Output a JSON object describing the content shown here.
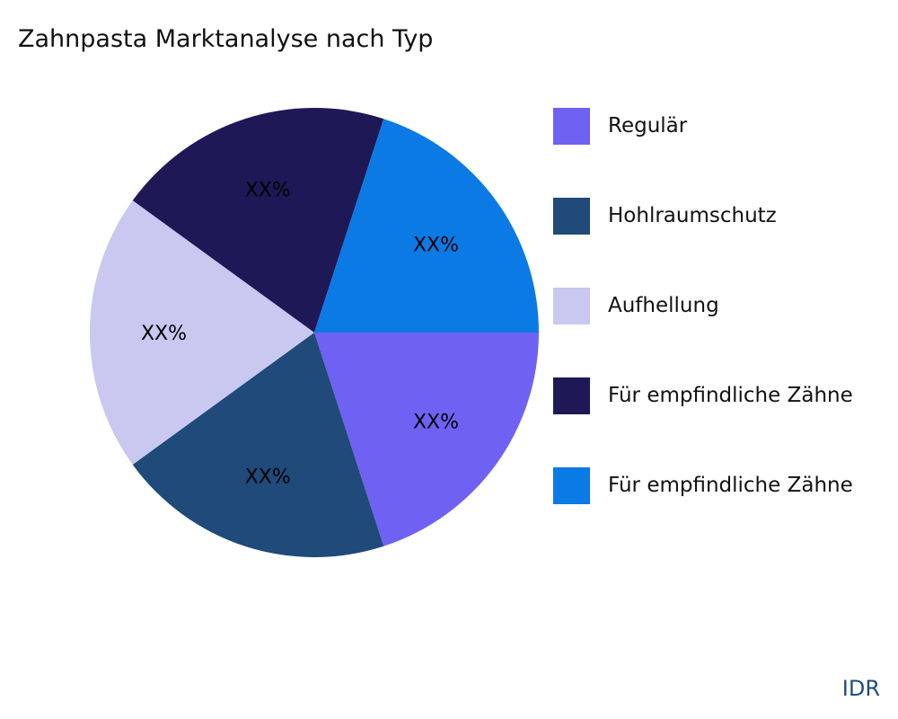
{
  "title": "Zahnpasta Marktanalyse nach Typ",
  "source": "IDR",
  "chart_data": {
    "type": "pie",
    "title": "Zahnpasta Marktanalyse nach Typ",
    "categories": [
      "Regulär",
      "Hohlraumschutz",
      "Aufhellung",
      "Für empfindliche Zähne",
      "Für empfindliche Zähne"
    ],
    "values": [
      20,
      20,
      20,
      20,
      20
    ],
    "labels": [
      "XX%",
      "XX%",
      "XX%",
      "XX%",
      "XX%"
    ],
    "colors": [
      "#6f62f2",
      "#1f4a7a",
      "#c8c8f0",
      "#1e1856",
      "#0b7ae5"
    ],
    "legend_position": "right"
  },
  "legend": [
    {
      "label": "Regulär",
      "color": "#6f62f2"
    },
    {
      "label": "Hohlraumschutz",
      "color": "#1f4a7a"
    },
    {
      "label": "Aufhellung",
      "color": "#c8c8f0"
    },
    {
      "label": "Für empfindliche Zähne",
      "color": "#1e1856"
    },
    {
      "label": "Für empfindliche Zähne",
      "color": "#0b7ae5"
    }
  ]
}
